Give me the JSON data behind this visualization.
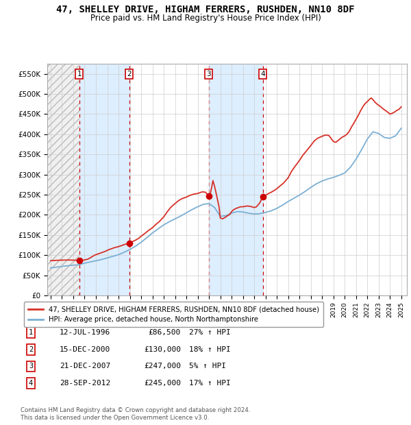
{
  "title": "47, SHELLEY DRIVE, HIGHAM FERRERS, RUSHDEN, NN10 8DF",
  "subtitle": "Price paid vs. HM Land Registry's House Price Index (HPI)",
  "legend_line1": "47, SHELLEY DRIVE, HIGHAM FERRERS, RUSHDEN, NN10 8DF (detached house)",
  "legend_line2": "HPI: Average price, detached house, North Northamptonshire",
  "footer1": "Contains HM Land Registry data © Crown copyright and database right 2024.",
  "footer2": "This data is licensed under the Open Government Licence v3.0.",
  "transactions": [
    {
      "num": 1,
      "date": "12-JUL-1996",
      "price": 86500,
      "pct": "27%",
      "dir": "↑"
    },
    {
      "num": 2,
      "date": "15-DEC-2000",
      "price": 130000,
      "pct": "18%",
      "dir": "↑"
    },
    {
      "num": 3,
      "date": "21-DEC-2007",
      "price": 247000,
      "pct": "5%",
      "dir": "↑"
    },
    {
      "num": 4,
      "date": "28-SEP-2012",
      "price": 245000,
      "pct": "17%",
      "dir": "↑"
    }
  ],
  "sale_dates_decimal": [
    1996.53,
    2000.96,
    2007.97,
    2012.75
  ],
  "sale_prices": [
    86500,
    130000,
    247000,
    245000
  ],
  "vline_dates": [
    1996.53,
    2000.96,
    2007.97,
    2012.75
  ],
  "shade_ranges": [
    [
      1996.53,
      2000.96
    ],
    [
      2007.97,
      2012.75
    ]
  ],
  "ylim": [
    0,
    575000
  ],
  "xlim_start": 1993.7,
  "xlim_end": 2025.5,
  "yticks": [
    0,
    50000,
    100000,
    150000,
    200000,
    250000,
    300000,
    350000,
    400000,
    450000,
    500000,
    550000
  ],
  "ytick_labels": [
    "£0",
    "£50K",
    "£100K",
    "£150K",
    "£200K",
    "£250K",
    "£300K",
    "£350K",
    "£400K",
    "£450K",
    "£500K",
    "£550K"
  ],
  "hpi_color": "#7bafd4",
  "price_color": "#d73027",
  "vline_color": "#cc0000",
  "shade_color": "#ddeeff",
  "dot_color": "#cc0000",
  "grid_color": "#cccccc",
  "bg_color": "#ffffff",
  "box_color": "#cc0000",
  "hpi_anchors": [
    [
      1994.0,
      68000
    ],
    [
      1994.5,
      70000
    ],
    [
      1995.0,
      72000
    ],
    [
      1995.5,
      73500
    ],
    [
      1996.0,
      75000
    ],
    [
      1996.5,
      76000
    ],
    [
      1997.0,
      80000
    ],
    [
      1997.5,
      83000
    ],
    [
      1998.0,
      86000
    ],
    [
      1998.5,
      89000
    ],
    [
      1999.0,
      93000
    ],
    [
      1999.5,
      97000
    ],
    [
      2000.0,
      101000
    ],
    [
      2000.5,
      107000
    ],
    [
      2001.0,
      114000
    ],
    [
      2001.5,
      122000
    ],
    [
      2002.0,
      132000
    ],
    [
      2002.5,
      143000
    ],
    [
      2003.0,
      155000
    ],
    [
      2003.5,
      165000
    ],
    [
      2004.0,
      175000
    ],
    [
      2004.5,
      183000
    ],
    [
      2005.0,
      190000
    ],
    [
      2005.5,
      197000
    ],
    [
      2006.0,
      205000
    ],
    [
      2006.5,
      213000
    ],
    [
      2007.0,
      220000
    ],
    [
      2007.5,
      226000
    ],
    [
      2008.0,
      228000
    ],
    [
      2008.5,
      218000
    ],
    [
      2009.0,
      196000
    ],
    [
      2009.5,
      198000
    ],
    [
      2010.0,
      204000
    ],
    [
      2010.5,
      208000
    ],
    [
      2011.0,
      207000
    ],
    [
      2011.5,
      204000
    ],
    [
      2012.0,
      202000
    ],
    [
      2012.5,
      203000
    ],
    [
      2013.0,
      206000
    ],
    [
      2013.5,
      210000
    ],
    [
      2014.0,
      216000
    ],
    [
      2014.5,
      224000
    ],
    [
      2015.0,
      233000
    ],
    [
      2015.5,
      241000
    ],
    [
      2016.0,
      249000
    ],
    [
      2016.5,
      258000
    ],
    [
      2017.0,
      268000
    ],
    [
      2017.5,
      277000
    ],
    [
      2018.0,
      284000
    ],
    [
      2018.5,
      289000
    ],
    [
      2019.0,
      293000
    ],
    [
      2019.5,
      298000
    ],
    [
      2020.0,
      304000
    ],
    [
      2020.5,
      318000
    ],
    [
      2021.0,
      338000
    ],
    [
      2021.5,
      362000
    ],
    [
      2022.0,
      388000
    ],
    [
      2022.5,
      406000
    ],
    [
      2023.0,
      402000
    ],
    [
      2023.5,
      392000
    ],
    [
      2024.0,
      390000
    ],
    [
      2024.5,
      396000
    ],
    [
      2025.0,
      415000
    ]
  ],
  "price_anchors": [
    [
      1994.0,
      86000
    ],
    [
      1994.5,
      87000
    ],
    [
      1995.0,
      87500
    ],
    [
      1995.5,
      87800
    ],
    [
      1996.0,
      87500
    ],
    [
      1996.53,
      86500
    ],
    [
      1997.0,
      88000
    ],
    [
      1997.3,
      90000
    ],
    [
      1997.6,
      95000
    ],
    [
      1997.9,
      100000
    ],
    [
      1998.2,
      103000
    ],
    [
      1998.5,
      106000
    ],
    [
      1998.8,
      109000
    ],
    [
      1999.1,
      113000
    ],
    [
      1999.4,
      116000
    ],
    [
      1999.7,
      119000
    ],
    [
      2000.0,
      121000
    ],
    [
      2000.5,
      126000
    ],
    [
      2000.96,
      130000
    ],
    [
      2001.2,
      133000
    ],
    [
      2001.5,
      137000
    ],
    [
      2001.8,
      142000
    ],
    [
      2002.0,
      147000
    ],
    [
      2002.3,
      153000
    ],
    [
      2002.6,
      160000
    ],
    [
      2003.0,
      168000
    ],
    [
      2003.3,
      176000
    ],
    [
      2003.6,
      183000
    ],
    [
      2004.0,
      195000
    ],
    [
      2004.3,
      207000
    ],
    [
      2004.6,
      218000
    ],
    [
      2005.0,
      228000
    ],
    [
      2005.3,
      235000
    ],
    [
      2005.6,
      240000
    ],
    [
      2006.0,
      244000
    ],
    [
      2006.3,
      248000
    ],
    [
      2006.6,
      251000
    ],
    [
      2007.0,
      253000
    ],
    [
      2007.4,
      257000
    ],
    [
      2007.7,
      256000
    ],
    [
      2007.97,
      247000
    ],
    [
      2008.1,
      250000
    ],
    [
      2008.25,
      270000
    ],
    [
      2008.35,
      285000
    ],
    [
      2008.5,
      270000
    ],
    [
      2008.7,
      245000
    ],
    [
      2008.9,
      218000
    ],
    [
      2009.0,
      192000
    ],
    [
      2009.2,
      190000
    ],
    [
      2009.4,
      193000
    ],
    [
      2009.6,
      197000
    ],
    [
      2009.8,
      200000
    ],
    [
      2010.0,
      208000
    ],
    [
      2010.2,
      213000
    ],
    [
      2010.4,
      216000
    ],
    [
      2010.6,
      218000
    ],
    [
      2010.8,
      220000
    ],
    [
      2011.0,
      220000
    ],
    [
      2011.2,
      221000
    ],
    [
      2011.4,
      222000
    ],
    [
      2011.6,
      221000
    ],
    [
      2011.8,
      220000
    ],
    [
      2012.0,
      218000
    ],
    [
      2012.2,
      220000
    ],
    [
      2012.5,
      230000
    ],
    [
      2012.75,
      245000
    ],
    [
      2013.0,
      248000
    ],
    [
      2013.2,
      252000
    ],
    [
      2013.5,
      256000
    ],
    [
      2013.8,
      261000
    ],
    [
      2014.0,
      265000
    ],
    [
      2014.3,
      272000
    ],
    [
      2014.6,
      279000
    ],
    [
      2015.0,
      292000
    ],
    [
      2015.3,
      308000
    ],
    [
      2015.6,
      320000
    ],
    [
      2016.0,
      335000
    ],
    [
      2016.3,
      348000
    ],
    [
      2016.6,
      358000
    ],
    [
      2017.0,
      372000
    ],
    [
      2017.3,
      383000
    ],
    [
      2017.6,
      390000
    ],
    [
      2018.0,
      395000
    ],
    [
      2018.3,
      398000
    ],
    [
      2018.6,
      397000
    ],
    [
      2019.0,
      382000
    ],
    [
      2019.2,
      380000
    ],
    [
      2019.4,
      384000
    ],
    [
      2019.6,
      389000
    ],
    [
      2019.8,
      393000
    ],
    [
      2020.0,
      396000
    ],
    [
      2020.2,
      400000
    ],
    [
      2020.4,
      407000
    ],
    [
      2020.6,
      418000
    ],
    [
      2020.8,
      427000
    ],
    [
      2021.0,
      437000
    ],
    [
      2021.2,
      447000
    ],
    [
      2021.4,
      458000
    ],
    [
      2021.6,
      468000
    ],
    [
      2021.8,
      476000
    ],
    [
      2022.0,
      481000
    ],
    [
      2022.2,
      487000
    ],
    [
      2022.35,
      490000
    ],
    [
      2022.5,
      486000
    ],
    [
      2022.7,
      479000
    ],
    [
      2022.9,
      474000
    ],
    [
      2023.0,
      472000
    ],
    [
      2023.2,
      468000
    ],
    [
      2023.4,
      463000
    ],
    [
      2023.6,
      459000
    ],
    [
      2023.8,
      455000
    ],
    [
      2024.0,
      450000
    ],
    [
      2024.2,
      452000
    ],
    [
      2024.4,
      455000
    ],
    [
      2024.6,
      459000
    ],
    [
      2024.8,
      462000
    ],
    [
      2025.0,
      468000
    ]
  ]
}
